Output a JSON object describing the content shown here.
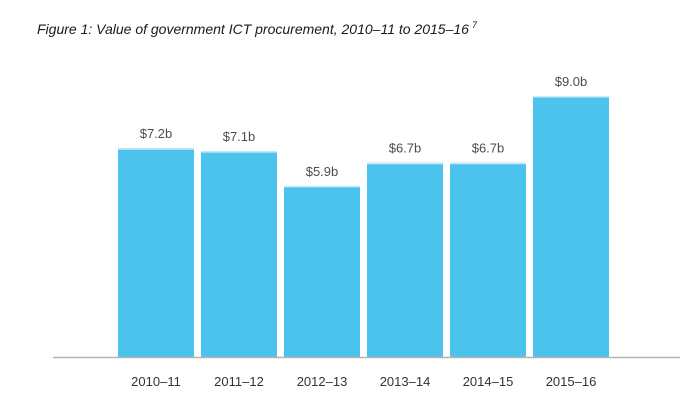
{
  "figure": {
    "title_text": "Figure 1: Value of government ICT procurement, 2010–11 to 2015–16",
    "footnote_ref": "7"
  },
  "chart_data": {
    "type": "bar",
    "title": "Figure 1: Value of government ICT procurement, 2010–11 to 2015–16",
    "xlabel": "",
    "ylabel": "",
    "categories": [
      "2010–11",
      "2011–12",
      "2012–13",
      "2013–14",
      "2014–15",
      "2015–16"
    ],
    "values": [
      7.2,
      7.1,
      5.9,
      6.7,
      6.7,
      9.0
    ],
    "value_labels": [
      "$7.2b",
      "$7.1b",
      "$5.9b",
      "$6.7b",
      "$6.7b",
      "$9.0b"
    ],
    "unit": "$ billion",
    "ylim": [
      0,
      9.0
    ],
    "grid": false,
    "legend": "none",
    "colors": {
      "bar": "#4cc3ec",
      "bar_edge": "#c8ecf9",
      "baseline": "#b3b3b3"
    }
  }
}
